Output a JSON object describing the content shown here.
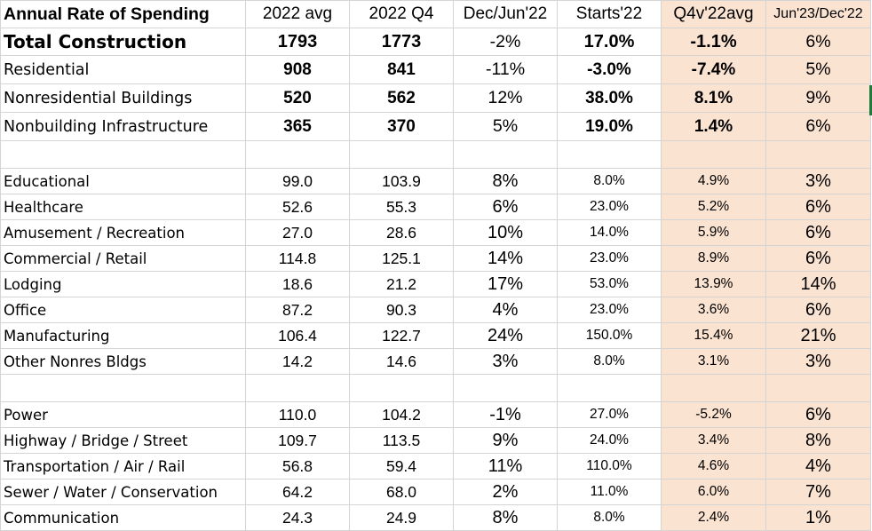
{
  "header": {
    "label": "Annual Rate of Spending",
    "col_2022avg": "2022 avg",
    "col_2022q4": "2022 Q4",
    "col_decjun": "Dec/Jun'22",
    "col_starts": "Starts'22",
    "col_q4v": "Q4v'22avg",
    "col_jundec": "Jun'23/Dec'22"
  },
  "rows": [
    {
      "label": "Total Construction",
      "avg": "1793",
      "q4": "1773",
      "decjun": "-2%",
      "starts": "17.0%",
      "q4v": "-1.1%",
      "jundec": "6%"
    },
    {
      "label": "Residential",
      "avg": "908",
      "q4": "841",
      "decjun": "-11%",
      "starts": "-3.0%",
      "q4v": "-7.4%",
      "jundec": "5%"
    },
    {
      "label": "Nonresidential Buildings",
      "avg": "520",
      "q4": "562",
      "decjun": "12%",
      "starts": "38.0%",
      "q4v": "8.1%",
      "jundec": "9%"
    },
    {
      "label": "Nonbuilding Infrastructure",
      "avg": "365",
      "q4": "370",
      "decjun": "5%",
      "starts": "19.0%",
      "q4v": "1.4%",
      "jundec": "6%"
    },
    {
      "label": "Educational",
      "avg": "99.0",
      "q4": "103.9",
      "decjun": "8%",
      "starts": "8.0%",
      "q4v": "4.9%",
      "jundec": "3%"
    },
    {
      "label": "Healthcare",
      "avg": "52.6",
      "q4": "55.3",
      "decjun": "6%",
      "starts": "23.0%",
      "q4v": "5.2%",
      "jundec": "6%"
    },
    {
      "label": "Amusement / Recreation",
      "avg": "27.0",
      "q4": "28.6",
      "decjun": "10%",
      "starts": "14.0%",
      "q4v": "5.9%",
      "jundec": "6%"
    },
    {
      "label": "Commercial / Retail",
      "avg": "114.8",
      "q4": "125.1",
      "decjun": "14%",
      "starts": "23.0%",
      "q4v": "8.9%",
      "jundec": "6%"
    },
    {
      "label": "Lodging",
      "avg": "18.6",
      "q4": "21.2",
      "decjun": "17%",
      "starts": "53.0%",
      "q4v": "13.9%",
      "jundec": "14%"
    },
    {
      "label": "Office",
      "avg": "87.2",
      "q4": "90.3",
      "decjun": "4%",
      "starts": "23.0%",
      "q4v": "3.6%",
      "jundec": "6%"
    },
    {
      "label": "Manufacturing",
      "avg": "106.4",
      "q4": "122.7",
      "decjun": "24%",
      "starts": "150.0%",
      "q4v": "15.4%",
      "jundec": "21%"
    },
    {
      "label": "Other Nonres Bldgs",
      "avg": "14.2",
      "q4": "14.6",
      "decjun": "3%",
      "starts": "8.0%",
      "q4v": "3.1%",
      "jundec": "3%"
    },
    {
      "label": "Power",
      "avg": "110.0",
      "q4": "104.2",
      "decjun": "-1%",
      "starts": "27.0%",
      "q4v": "-5.2%",
      "jundec": "6%"
    },
    {
      "label": "Highway / Bridge / Street",
      "avg": "109.7",
      "q4": "113.5",
      "decjun": "9%",
      "starts": "24.0%",
      "q4v": "3.4%",
      "jundec": "8%"
    },
    {
      "label": "Transportation / Air / Rail",
      "avg": "56.8",
      "q4": "59.4",
      "decjun": "11%",
      "starts": "110.0%",
      "q4v": "4.6%",
      "jundec": "4%"
    },
    {
      "label": "Sewer / Water / Conservation",
      "avg": "64.2",
      "q4": "68.0",
      "decjun": "2%",
      "starts": "11.0%",
      "q4v": "6.0%",
      "jundec": "7%"
    },
    {
      "label": "Communication",
      "avg": "24.3",
      "q4": "24.9",
      "decjun": "8%",
      "starts": "8.0%",
      "q4v": "2.4%",
      "jundec": "1%"
    }
  ],
  "colors": {
    "shade": "#fbe3d2",
    "gridline": "#d4d4d4",
    "selection_edge": "#1f7a3c"
  }
}
